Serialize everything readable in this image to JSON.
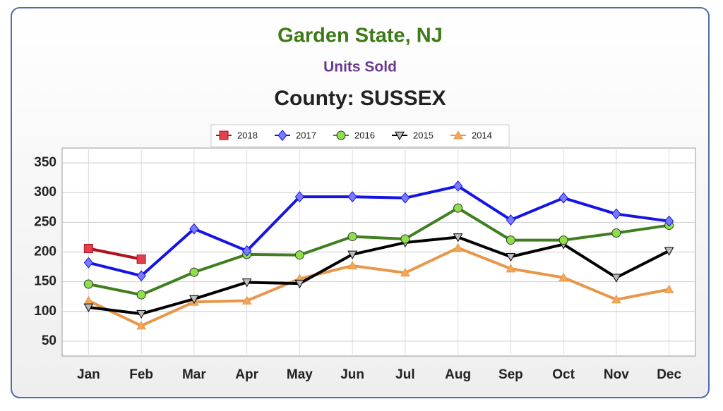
{
  "chart_data": {
    "type": "line",
    "title": "Garden State, NJ",
    "subtitle": "Units Sold",
    "heading": "County: SUSSEX",
    "categories": [
      "Jan",
      "Feb",
      "Mar",
      "Apr",
      "May",
      "Jun",
      "Jul",
      "Aug",
      "Sep",
      "Oct",
      "Nov",
      "Dec"
    ],
    "series": [
      {
        "name": "2018",
        "color": "#b0101a",
        "marker": "square",
        "values": [
          206,
          188,
          null,
          null,
          null,
          null,
          null,
          null,
          null,
          null,
          null,
          null
        ]
      },
      {
        "name": "2017",
        "color": "#1414e6",
        "marker": "diamond",
        "values": [
          182,
          160,
          239,
          202,
          293,
          293,
          291,
          311,
          254,
          291,
          264,
          252
        ]
      },
      {
        "name": "2016",
        "color": "#3f7f1f",
        "marker": "circle",
        "values": [
          146,
          128,
          166,
          196,
          195,
          226,
          222,
          274,
          220,
          220,
          232,
          245
        ]
      },
      {
        "name": "2015",
        "color": "#000000",
        "marker": "triangle-down",
        "values": [
          107,
          96,
          121,
          149,
          147,
          196,
          216,
          225,
          192,
          213,
          157,
          202
        ]
      },
      {
        "name": "2014",
        "color": "#e8974a",
        "marker": "triangle-up",
        "values": [
          118,
          76,
          116,
          118,
          155,
          177,
          165,
          207,
          172,
          157,
          120,
          137
        ]
      }
    ],
    "ylim": [
      25,
      375
    ],
    "yticks": [
      50,
      100,
      150,
      200,
      250,
      300,
      350
    ],
    "grid": true,
    "legend": "top"
  }
}
